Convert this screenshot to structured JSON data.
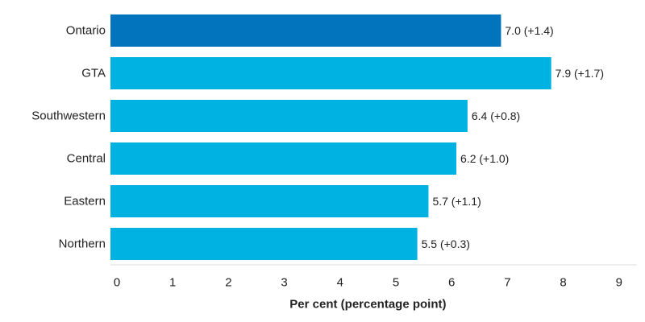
{
  "chart_data": {
    "type": "bar",
    "orientation": "horizontal",
    "categories": [
      "Ontario",
      "GTA",
      "Southwestern",
      "Central",
      "Eastern",
      "Northern"
    ],
    "values": [
      7.0,
      7.9,
      6.4,
      6.2,
      5.7,
      5.5
    ],
    "data_labels": [
      "7.0",
      "7.9",
      "6.4",
      "6.2",
      "5.7",
      "5.5"
    ],
    "change_labels": [
      "(+1.4)",
      "(+1.7)",
      "(+0.8)",
      "(+1.0)",
      "(+1.1)",
      "(+0.3)"
    ],
    "highlight_index": 0,
    "colors": {
      "highlight": "#0273bd",
      "default": "#00b2e2",
      "axis_line": "#dddddd"
    },
    "title": "",
    "xlabel": "Per cent (percentage point)",
    "ylabel": "",
    "xlim": [
      0,
      9
    ],
    "xticks": [
      0,
      1,
      2,
      3,
      4,
      5,
      6,
      7,
      8,
      9
    ],
    "grid": false,
    "legend": "none"
  }
}
